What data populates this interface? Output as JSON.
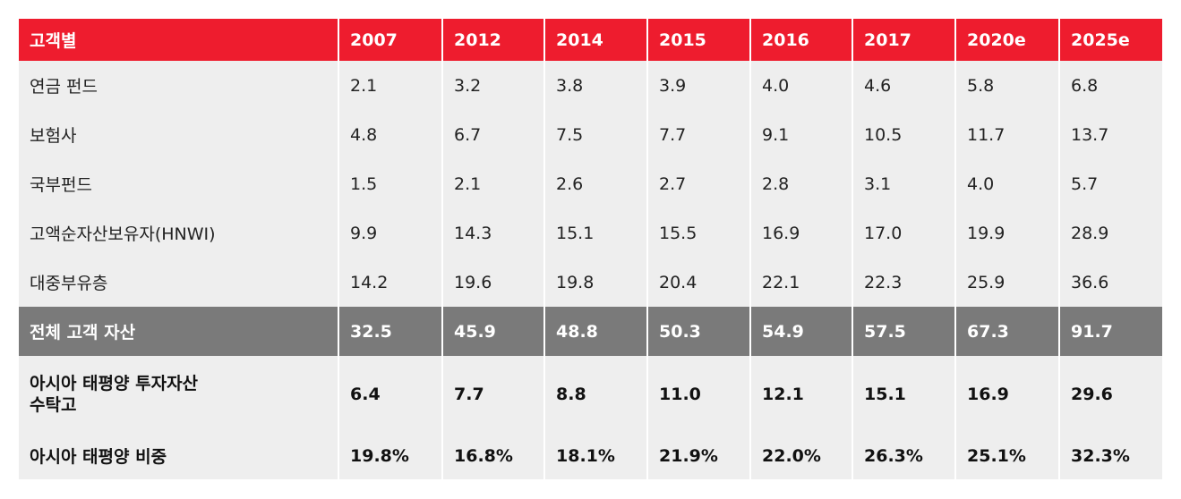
{
  "table": {
    "header": [
      "고객별",
      "2007",
      "2012",
      "2014",
      "2015",
      "2016",
      "2017",
      "2020e",
      "2025e"
    ],
    "rows": [
      {
        "label": "연금 펀드",
        "values": [
          "2.1",
          "3.2",
          "3.8",
          "3.9",
          "4.0",
          "4.6",
          "5.8",
          "6.8"
        ]
      },
      {
        "label": "보험사",
        "values": [
          "4.8",
          "6.7",
          "7.5",
          "7.7",
          "9.1",
          "10.5",
          "11.7",
          "13.7"
        ]
      },
      {
        "label": "국부펀드",
        "values": [
          "1.5",
          "2.1",
          "2.6",
          "2.7",
          "2.8",
          "3.1",
          "4.0",
          "5.7"
        ]
      },
      {
        "label": "고액순자산보유자(HNWI)",
        "values": [
          "9.9",
          "14.3",
          "15.1",
          "15.5",
          "16.9",
          "17.0",
          "19.9",
          "28.9"
        ]
      },
      {
        "label": "대중부유층",
        "values": [
          "14.2",
          "19.6",
          "19.8",
          "20.4",
          "22.1",
          "22.3",
          "25.9",
          "36.6"
        ]
      }
    ],
    "total": {
      "label": "전체 고객 자산",
      "values": [
        "32.5",
        "45.9",
        "48.8",
        "50.3",
        "54.9",
        "57.5",
        "67.3",
        "91.7"
      ]
    },
    "apac_aum": {
      "label": "아시아 태평양 투자자산\n수탁고",
      "values": [
        "6.4",
        "7.7",
        "8.8",
        "11.0",
        "12.1",
        "15.1",
        "16.9",
        "29.6"
      ]
    },
    "apac_share": {
      "label": "아시아 태평양 비중",
      "values": [
        "19.8%",
        "16.8%",
        "18.1%",
        "21.9%",
        "22.0%",
        "26.3%",
        "25.1%",
        "32.3%"
      ]
    }
  },
  "colors": {
    "header": "#ee1c2e",
    "total": "#7a7a7a",
    "row": "#eeeeee"
  }
}
